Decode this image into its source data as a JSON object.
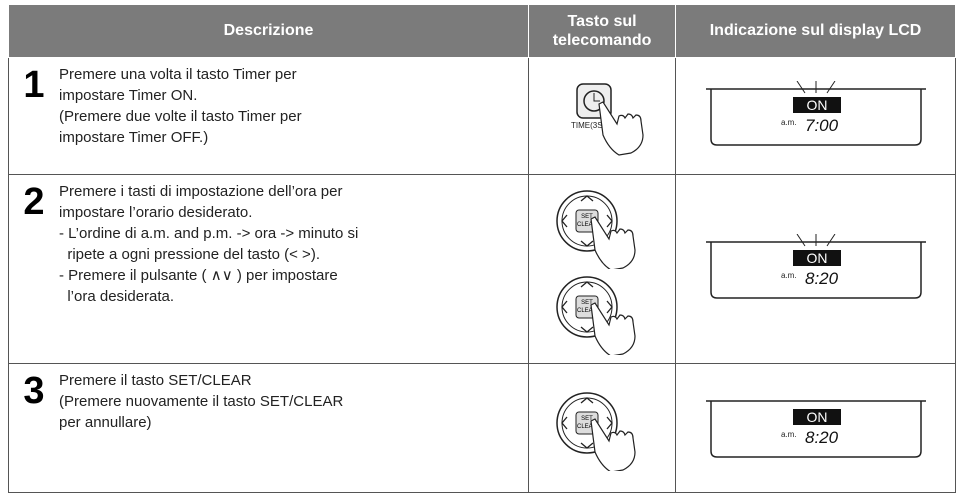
{
  "table": {
    "header": [
      "Descrizione",
      "Tasto sul telecomando",
      "Indicazione sul display LCD"
    ],
    "rows": [
      {
        "step": "1",
        "lines": [
          "Premere una volta il tasto Timer per",
          "impostare Timer ON.",
          "(Premere due volte il tasto Timer per",
          "impostare Timer OFF.)"
        ],
        "keys": [
          [
            "TIME(3SEC)"
          ]
        ],
        "lcd": {
          "status": "ON",
          "ampm": "a.m.",
          "time": "7:00"
        }
      },
      {
        "step": "2",
        "lines": [
          "Premere i tasti di impostazione dell’ora per",
          "impostare l’orario desiderato.",
          "- L’ordine di a.m. and p.m. -> ora -> minuto si",
          "  ripete a ogni pressione del tasto (< >).",
          "- Premere il pulsante ( ∧∨ ) per impostare",
          "  l’ora desiderata."
        ],
        "keys": [
          [
            "SET",
            "CLEAR"
          ],
          [
            "SET",
            "CLEAR"
          ]
        ],
        "lcd": {
          "status": "ON",
          "ampm": "a.m.",
          "time": "8:20"
        }
      },
      {
        "step": "3",
        "lines": [
          "Premere il tasto SET/CLEAR",
          "(Premere nuovamente il tasto SET/CLEAR",
          "per annullare)"
        ],
        "keys": [
          [
            "SET",
            "CLEAR"
          ]
        ],
        "lcd": {
          "status": "ON",
          "ampm": "a.m.",
          "time": "8:20"
        }
      }
    ]
  }
}
